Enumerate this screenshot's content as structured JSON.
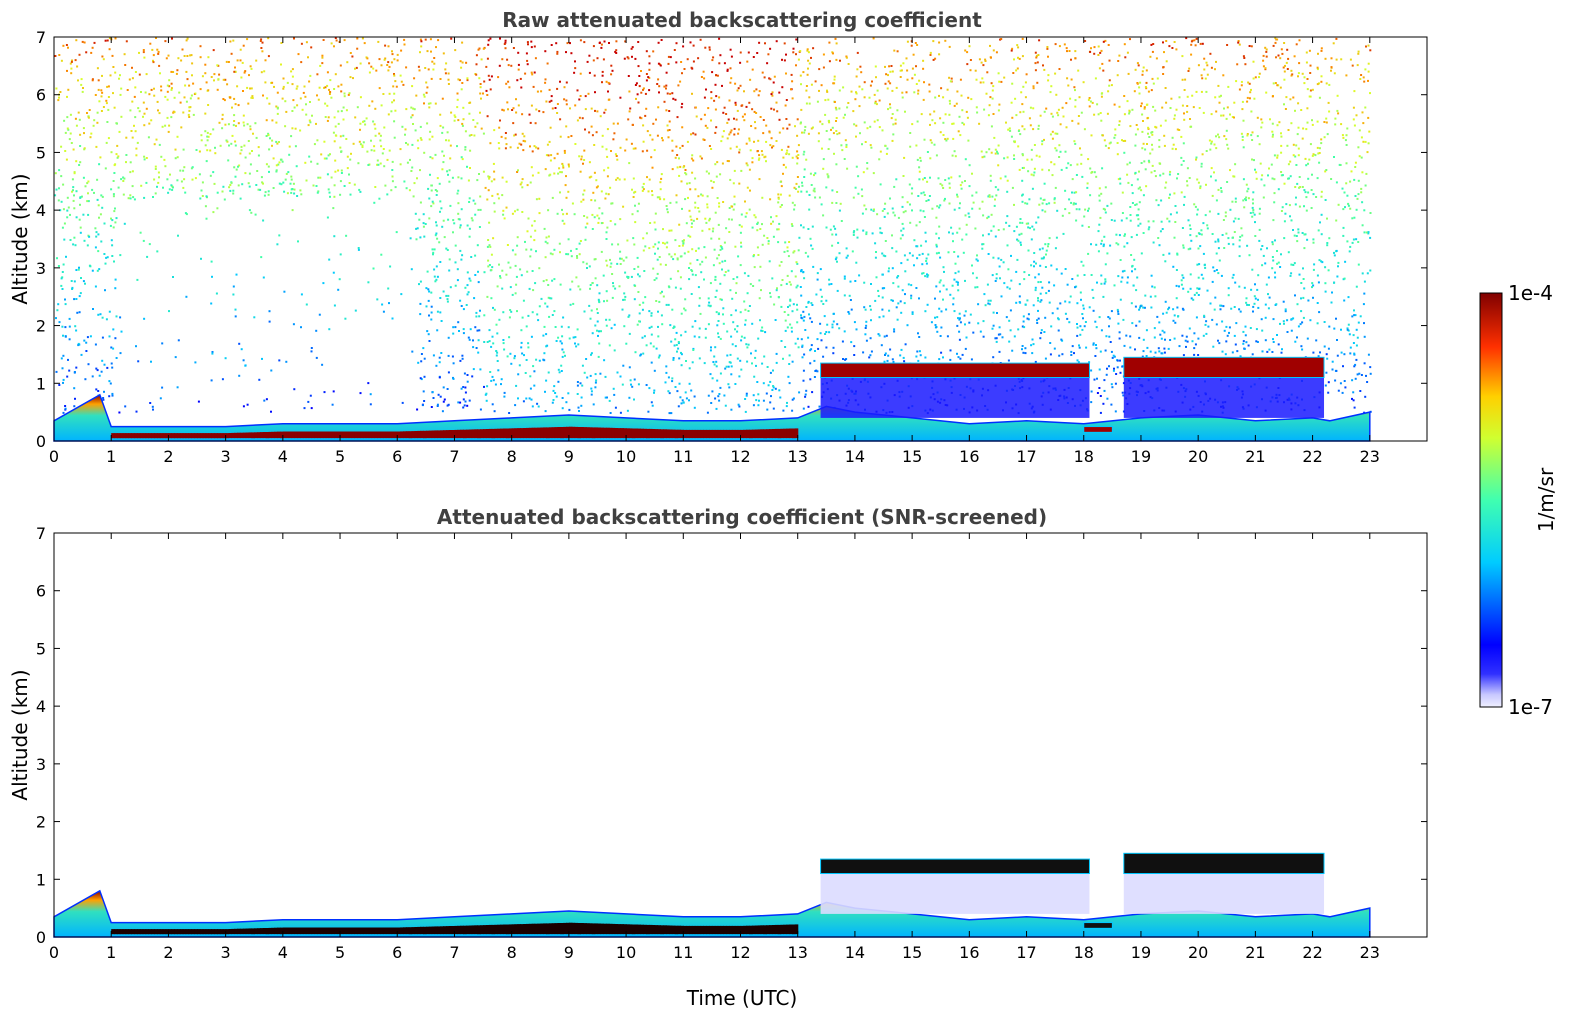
{
  "chart_data": [
    {
      "type": "heatmap",
      "title": "Raw attenuated backscattering coefficient",
      "xlabel": "",
      "ylabel": "Altitude (km)",
      "xlim": [
        0,
        24
      ],
      "ylim": [
        0,
        7
      ],
      "x_ticks": [
        "0",
        "1",
        "2",
        "3",
        "4",
        "5",
        "6",
        "7",
        "8",
        "9",
        "10",
        "11",
        "12",
        "13",
        "14",
        "15",
        "16",
        "17",
        "18",
        "19",
        "20",
        "21",
        "22",
        "23"
      ],
      "y_ticks": [
        "0",
        "1",
        "2",
        "3",
        "4",
        "5",
        "6",
        "7"
      ],
      "data_end_time": 23,
      "boundary_layer_top_km": [
        [
          0,
          0.35
        ],
        [
          0.8,
          0.8
        ],
        [
          1,
          0.25
        ],
        [
          2,
          0.25
        ],
        [
          3,
          0.25
        ],
        [
          4,
          0.3
        ],
        [
          5,
          0.3
        ],
        [
          6,
          0.3
        ],
        [
          7,
          0.35
        ],
        [
          8,
          0.4
        ],
        [
          9,
          0.45
        ],
        [
          10,
          0.4
        ],
        [
          11,
          0.35
        ],
        [
          12,
          0.35
        ],
        [
          13,
          0.4
        ],
        [
          13.5,
          0.6
        ],
        [
          14,
          0.5
        ],
        [
          15,
          0.4
        ],
        [
          16,
          0.3
        ],
        [
          17,
          0.35
        ],
        [
          18,
          0.3
        ],
        [
          19,
          0.4
        ],
        [
          20,
          0.45
        ],
        [
          21,
          0.35
        ],
        [
          22,
          0.4
        ],
        [
          22.3,
          0.35
        ],
        [
          23,
          0.5
        ]
      ],
      "cloud_layers_km": [
        {
          "start": 13.4,
          "end": 18.1,
          "base": 1.1,
          "top": 1.35
        },
        {
          "start": 18.0,
          "end": 18.5,
          "base": 0.15,
          "top": 0.25
        },
        {
          "start": 18.7,
          "end": 22.2,
          "base": 1.1,
          "top": 1.45
        }
      ],
      "noise": "high"
    },
    {
      "type": "heatmap",
      "title": "Attenuated backscattering coefficient (SNR-screened)",
      "xlabel": "Time (UTC)",
      "ylabel": "Altitude (km)",
      "xlim": [
        0,
        24
      ],
      "ylim": [
        0,
        7
      ],
      "x_ticks": [
        "0",
        "1",
        "2",
        "3",
        "4",
        "5",
        "6",
        "7",
        "8",
        "9",
        "10",
        "11",
        "12",
        "13",
        "14",
        "15",
        "16",
        "17",
        "18",
        "19",
        "20",
        "21",
        "22",
        "23"
      ],
      "y_ticks": [
        "0",
        "1",
        "2",
        "3",
        "4",
        "5",
        "6",
        "7"
      ],
      "data_end_time": 23,
      "boundary_layer_top_km": [
        [
          0,
          0.35
        ],
        [
          0.8,
          0.8
        ],
        [
          1,
          0.25
        ],
        [
          2,
          0.25
        ],
        [
          3,
          0.25
        ],
        [
          4,
          0.3
        ],
        [
          5,
          0.3
        ],
        [
          6,
          0.3
        ],
        [
          7,
          0.35
        ],
        [
          8,
          0.4
        ],
        [
          9,
          0.45
        ],
        [
          10,
          0.4
        ],
        [
          11,
          0.35
        ],
        [
          12,
          0.35
        ],
        [
          13,
          0.4
        ],
        [
          13.5,
          0.6
        ],
        [
          14,
          0.5
        ],
        [
          15,
          0.4
        ],
        [
          16,
          0.3
        ],
        [
          17,
          0.35
        ],
        [
          18,
          0.3
        ],
        [
          19,
          0.4
        ],
        [
          20,
          0.45
        ],
        [
          21,
          0.35
        ],
        [
          22,
          0.4
        ],
        [
          22.3,
          0.35
        ],
        [
          23,
          0.5
        ]
      ],
      "cloud_layers_km": [
        {
          "start": 13.4,
          "end": 18.1,
          "base": 1.1,
          "top": 1.35
        },
        {
          "start": 18.0,
          "end": 18.5,
          "base": 0.15,
          "top": 0.25
        },
        {
          "start": 18.7,
          "end": 22.2,
          "base": 1.1,
          "top": 1.45
        }
      ],
      "noise": "none"
    }
  ],
  "colorbar": {
    "max_label": "1e-4",
    "min_label": "1e-7",
    "unit_label": "1/m/sr",
    "colormap": "jet",
    "colors": [
      "#f0f0ff",
      "#0000ff",
      "#00ffff",
      "#ffff00",
      "#ff0000",
      "#800000"
    ]
  }
}
